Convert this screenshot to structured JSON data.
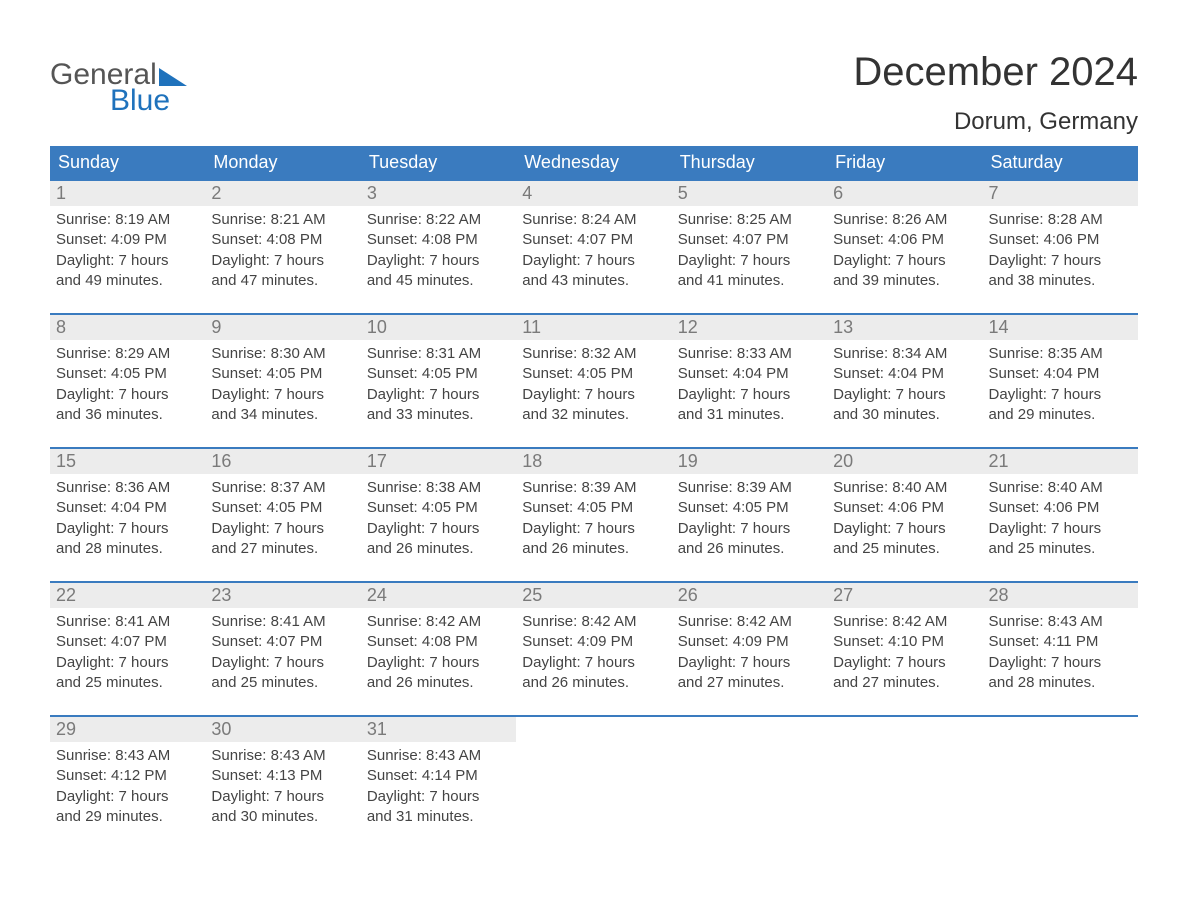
{
  "logo": {
    "top": "General",
    "bottom": "Blue"
  },
  "title": "December 2024",
  "location": "Dorum, Germany",
  "colors": {
    "header_bg": "#3a7bbf",
    "header_text": "#ffffff",
    "week_border": "#3a7bbf",
    "daynum_bg": "#ececec",
    "daynum_text": "#7a7a7a",
    "body_text": "#444444",
    "title_text": "#333333",
    "logo_gray": "#555555",
    "logo_blue": "#1f72bc",
    "page_bg": "#ffffff"
  },
  "dow": [
    "Sunday",
    "Monday",
    "Tuesday",
    "Wednesday",
    "Thursday",
    "Friday",
    "Saturday"
  ],
  "weeks": [
    {
      "days": [
        {
          "num": "1",
          "sunrise": "Sunrise: 8:19 AM",
          "sunset": "Sunset: 4:09 PM",
          "d1": "Daylight: 7 hours",
          "d2": "and 49 minutes."
        },
        {
          "num": "2",
          "sunrise": "Sunrise: 8:21 AM",
          "sunset": "Sunset: 4:08 PM",
          "d1": "Daylight: 7 hours",
          "d2": "and 47 minutes."
        },
        {
          "num": "3",
          "sunrise": "Sunrise: 8:22 AM",
          "sunset": "Sunset: 4:08 PM",
          "d1": "Daylight: 7 hours",
          "d2": "and 45 minutes."
        },
        {
          "num": "4",
          "sunrise": "Sunrise: 8:24 AM",
          "sunset": "Sunset: 4:07 PM",
          "d1": "Daylight: 7 hours",
          "d2": "and 43 minutes."
        },
        {
          "num": "5",
          "sunrise": "Sunrise: 8:25 AM",
          "sunset": "Sunset: 4:07 PM",
          "d1": "Daylight: 7 hours",
          "d2": "and 41 minutes."
        },
        {
          "num": "6",
          "sunrise": "Sunrise: 8:26 AM",
          "sunset": "Sunset: 4:06 PM",
          "d1": "Daylight: 7 hours",
          "d2": "and 39 minutes."
        },
        {
          "num": "7",
          "sunrise": "Sunrise: 8:28 AM",
          "sunset": "Sunset: 4:06 PM",
          "d1": "Daylight: 7 hours",
          "d2": "and 38 minutes."
        }
      ]
    },
    {
      "days": [
        {
          "num": "8",
          "sunrise": "Sunrise: 8:29 AM",
          "sunset": "Sunset: 4:05 PM",
          "d1": "Daylight: 7 hours",
          "d2": "and 36 minutes."
        },
        {
          "num": "9",
          "sunrise": "Sunrise: 8:30 AM",
          "sunset": "Sunset: 4:05 PM",
          "d1": "Daylight: 7 hours",
          "d2": "and 34 minutes."
        },
        {
          "num": "10",
          "sunrise": "Sunrise: 8:31 AM",
          "sunset": "Sunset: 4:05 PM",
          "d1": "Daylight: 7 hours",
          "d2": "and 33 minutes."
        },
        {
          "num": "11",
          "sunrise": "Sunrise: 8:32 AM",
          "sunset": "Sunset: 4:05 PM",
          "d1": "Daylight: 7 hours",
          "d2": "and 32 minutes."
        },
        {
          "num": "12",
          "sunrise": "Sunrise: 8:33 AM",
          "sunset": "Sunset: 4:04 PM",
          "d1": "Daylight: 7 hours",
          "d2": "and 31 minutes."
        },
        {
          "num": "13",
          "sunrise": "Sunrise: 8:34 AM",
          "sunset": "Sunset: 4:04 PM",
          "d1": "Daylight: 7 hours",
          "d2": "and 30 minutes."
        },
        {
          "num": "14",
          "sunrise": "Sunrise: 8:35 AM",
          "sunset": "Sunset: 4:04 PM",
          "d1": "Daylight: 7 hours",
          "d2": "and 29 minutes."
        }
      ]
    },
    {
      "days": [
        {
          "num": "15",
          "sunrise": "Sunrise: 8:36 AM",
          "sunset": "Sunset: 4:04 PM",
          "d1": "Daylight: 7 hours",
          "d2": "and 28 minutes."
        },
        {
          "num": "16",
          "sunrise": "Sunrise: 8:37 AM",
          "sunset": "Sunset: 4:05 PM",
          "d1": "Daylight: 7 hours",
          "d2": "and 27 minutes."
        },
        {
          "num": "17",
          "sunrise": "Sunrise: 8:38 AM",
          "sunset": "Sunset: 4:05 PM",
          "d1": "Daylight: 7 hours",
          "d2": "and 26 minutes."
        },
        {
          "num": "18",
          "sunrise": "Sunrise: 8:39 AM",
          "sunset": "Sunset: 4:05 PM",
          "d1": "Daylight: 7 hours",
          "d2": "and 26 minutes."
        },
        {
          "num": "19",
          "sunrise": "Sunrise: 8:39 AM",
          "sunset": "Sunset: 4:05 PM",
          "d1": "Daylight: 7 hours",
          "d2": "and 26 minutes."
        },
        {
          "num": "20",
          "sunrise": "Sunrise: 8:40 AM",
          "sunset": "Sunset: 4:06 PM",
          "d1": "Daylight: 7 hours",
          "d2": "and 25 minutes."
        },
        {
          "num": "21",
          "sunrise": "Sunrise: 8:40 AM",
          "sunset": "Sunset: 4:06 PM",
          "d1": "Daylight: 7 hours",
          "d2": "and 25 minutes."
        }
      ]
    },
    {
      "days": [
        {
          "num": "22",
          "sunrise": "Sunrise: 8:41 AM",
          "sunset": "Sunset: 4:07 PM",
          "d1": "Daylight: 7 hours",
          "d2": "and 25 minutes."
        },
        {
          "num": "23",
          "sunrise": "Sunrise: 8:41 AM",
          "sunset": "Sunset: 4:07 PM",
          "d1": "Daylight: 7 hours",
          "d2": "and 25 minutes."
        },
        {
          "num": "24",
          "sunrise": "Sunrise: 8:42 AM",
          "sunset": "Sunset: 4:08 PM",
          "d1": "Daylight: 7 hours",
          "d2": "and 26 minutes."
        },
        {
          "num": "25",
          "sunrise": "Sunrise: 8:42 AM",
          "sunset": "Sunset: 4:09 PM",
          "d1": "Daylight: 7 hours",
          "d2": "and 26 minutes."
        },
        {
          "num": "26",
          "sunrise": "Sunrise: 8:42 AM",
          "sunset": "Sunset: 4:09 PM",
          "d1": "Daylight: 7 hours",
          "d2": "and 27 minutes."
        },
        {
          "num": "27",
          "sunrise": "Sunrise: 8:42 AM",
          "sunset": "Sunset: 4:10 PM",
          "d1": "Daylight: 7 hours",
          "d2": "and 27 minutes."
        },
        {
          "num": "28",
          "sunrise": "Sunrise: 8:43 AM",
          "sunset": "Sunset: 4:11 PM",
          "d1": "Daylight: 7 hours",
          "d2": "and 28 minutes."
        }
      ]
    },
    {
      "days": [
        {
          "num": "29",
          "sunrise": "Sunrise: 8:43 AM",
          "sunset": "Sunset: 4:12 PM",
          "d1": "Daylight: 7 hours",
          "d2": "and 29 minutes."
        },
        {
          "num": "30",
          "sunrise": "Sunrise: 8:43 AM",
          "sunset": "Sunset: 4:13 PM",
          "d1": "Daylight: 7 hours",
          "d2": "and 30 minutes."
        },
        {
          "num": "31",
          "sunrise": "Sunrise: 8:43 AM",
          "sunset": "Sunset: 4:14 PM",
          "d1": "Daylight: 7 hours",
          "d2": "and 31 minutes."
        },
        {
          "empty": true
        },
        {
          "empty": true
        },
        {
          "empty": true
        },
        {
          "empty": true
        }
      ]
    }
  ]
}
